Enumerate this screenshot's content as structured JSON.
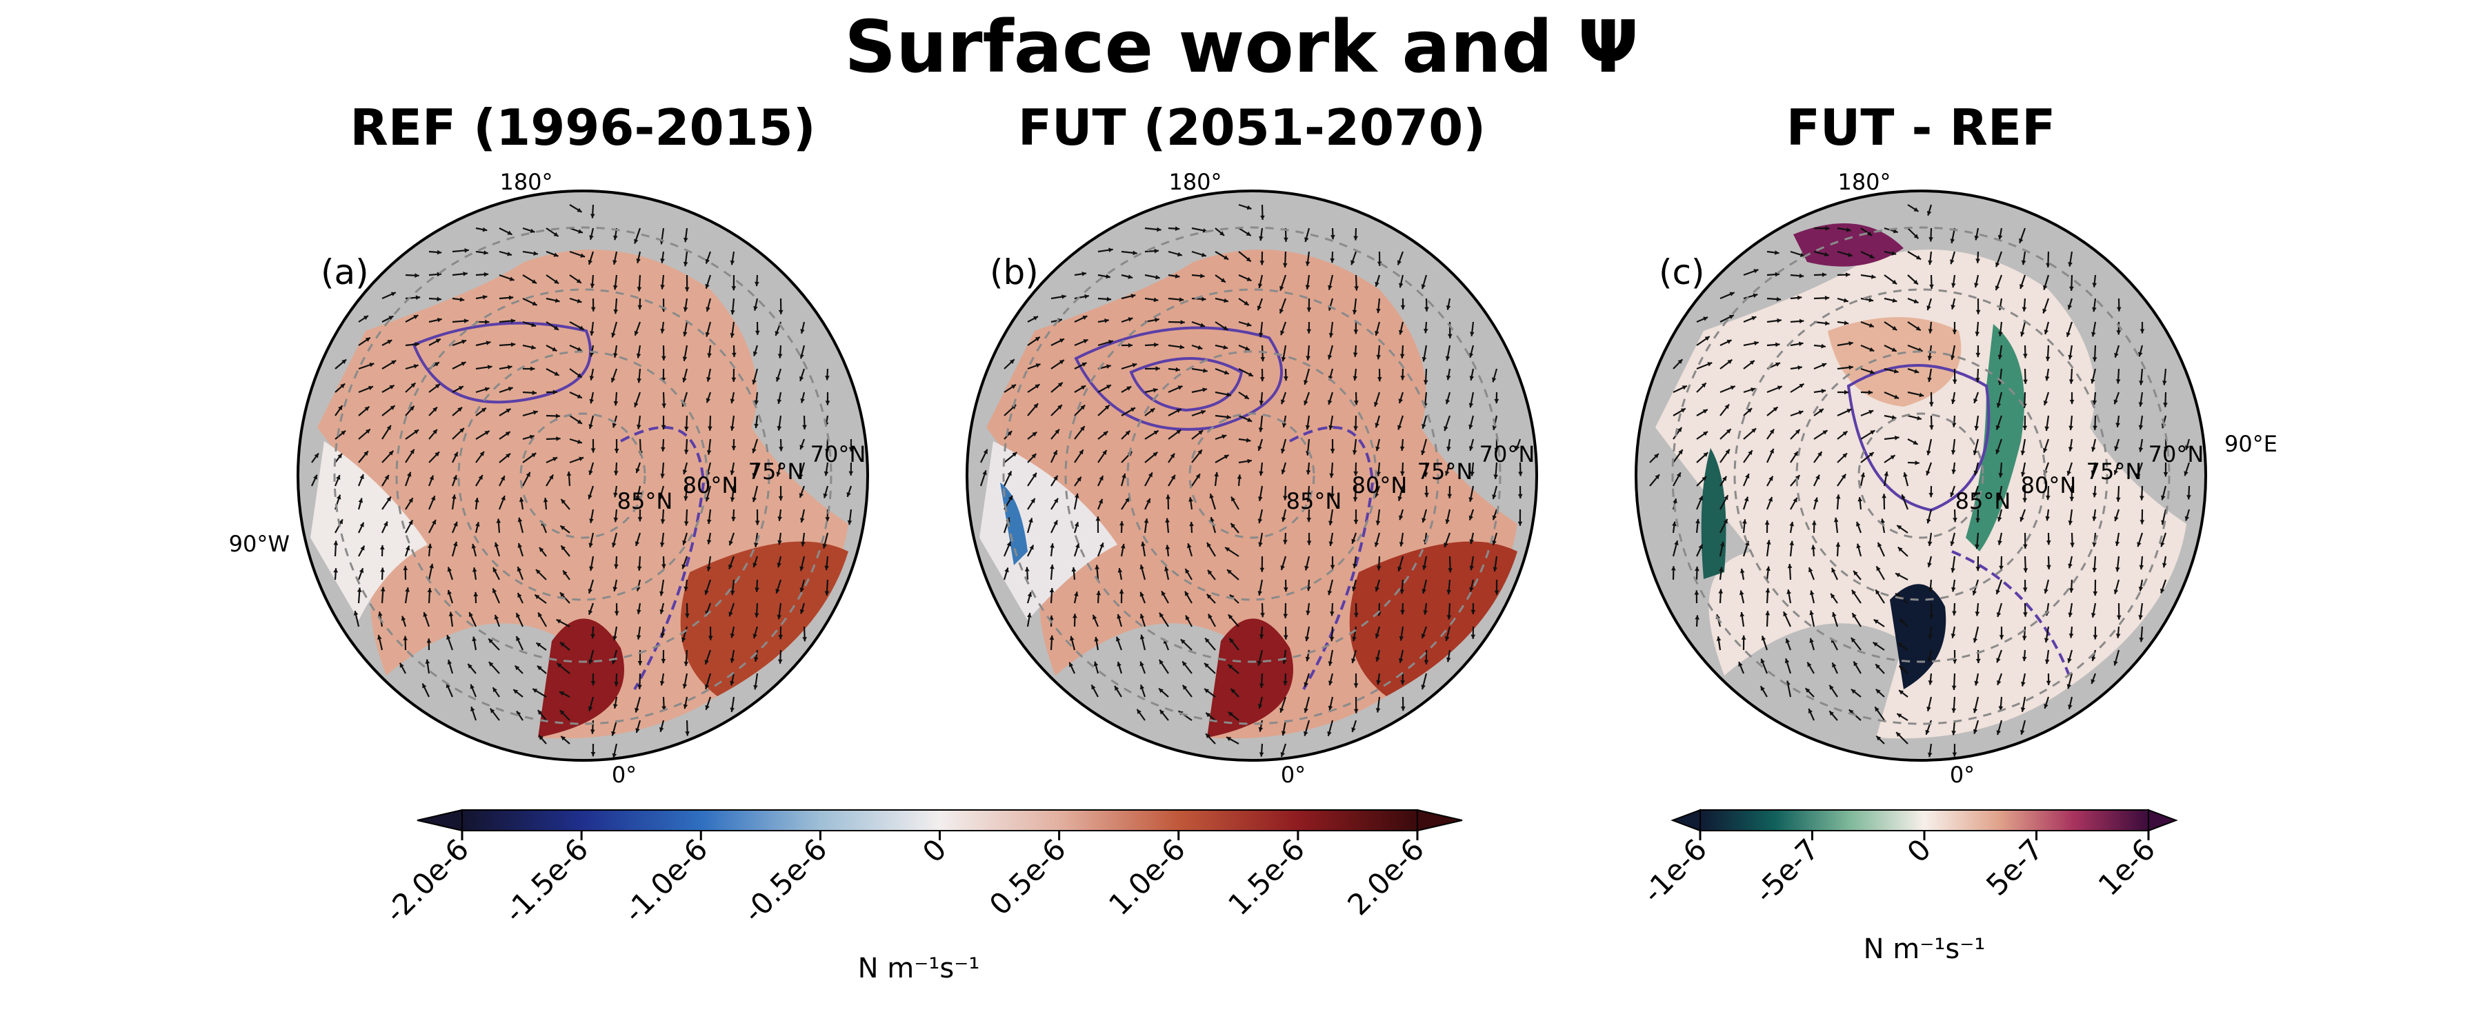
{
  "figure": {
    "title": "Surface work and Ψ"
  },
  "panels": [
    {
      "title": "REF (1996-2015)",
      "label": "(a)",
      "variant": "absolute",
      "gridlines": {
        "lon_180": "180°",
        "lon_0": "0°",
        "lon_90w": "90°W",
        "lat_70": "70°N",
        "lat_75": "75°N",
        "lat_80": "80°N",
        "lat_85": "85°N"
      }
    },
    {
      "title": "FUT (2051-2070)",
      "label": "(b)",
      "variant": "absolute",
      "gridlines": {
        "lon_180": "180°",
        "lon_0": "0°",
        "lat_70": "70°N",
        "lat_75": "75°N",
        "lat_80": "80°N",
        "lat_85": "85°N"
      }
    },
    {
      "title": "FUT - REF",
      "label": "(c)",
      "variant": "difference",
      "gridlines": {
        "lon_180": "180°",
        "lon_0": "0°",
        "lon_90e": "90°E",
        "lat_70": "70°N",
        "lat_75": "75°N",
        "lat_80": "80°N",
        "lat_85": "85°N"
      }
    }
  ],
  "colorbars": [
    {
      "name": "absolute",
      "ticks": [
        "-2.0e-6",
        "-1.5e-6",
        "-1.0e-6",
        "-0.5e-6",
        "0",
        "0.5e-6",
        "1.0e-6",
        "1.5e-6",
        "2.0e-6"
      ],
      "range": [
        -2e-06,
        2e-06
      ],
      "units": "N m⁻¹s⁻¹",
      "colors": [
        "#14142e",
        "#1f2f8c",
        "#2f6fc0",
        "#9fbfd6",
        "#f2eeee",
        "#e2b0a0",
        "#c0583a",
        "#8e1c20",
        "#3a0a0c"
      ],
      "extend": "both"
    },
    {
      "name": "difference",
      "ticks": [
        "-1e-6",
        "-5e-7",
        "0",
        "5e-7",
        "1e-6"
      ],
      "range": [
        -1e-06,
        1e-06
      ],
      "units": "N m⁻¹s⁻¹",
      "colors": [
        "#0f1a33",
        "#11605c",
        "#7fb89a",
        "#f6efea",
        "#e0a28a",
        "#a8335e",
        "#3b0c3c"
      ],
      "extend": "both"
    }
  ],
  "colors": {
    "land": "#bdbdbd",
    "contour": "#5b3fa8",
    "arrow": "#111111",
    "gridline": "#8a8a8a"
  }
}
